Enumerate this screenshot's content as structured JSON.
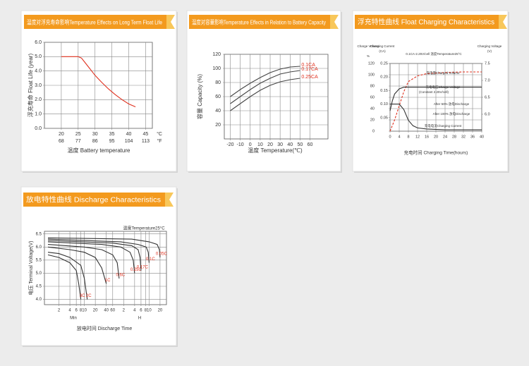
{
  "chart_data": [
    {
      "type": "line",
      "title": "温度对浮充寿命影响Temperature Effects on Long Term Float Life",
      "ylabel": "浮充寿命 Float Life (year)",
      "xlabel": "温度 Battery temperature",
      "xunits": [
        "°C",
        "°F"
      ],
      "x": [
        20,
        25,
        26,
        27,
        28,
        30,
        32,
        34,
        36,
        38,
        40,
        42
      ],
      "values": [
        5,
        5,
        4.9,
        4.6,
        4.3,
        3.7,
        3.2,
        2.75,
        2.35,
        2.0,
        1.7,
        1.5
      ],
      "color": "#e0301e",
      "xlim": [
        15,
        47
      ],
      "xticks": [
        20,
        25,
        30,
        35,
        40,
        45
      ],
      "x2ticks": [
        {
          "value": 20,
          "label": "68"
        },
        {
          "value": 25,
          "label": "77"
        },
        {
          "value": 30,
          "label": "86"
        },
        {
          "value": 35,
          "label": "95"
        },
        {
          "value": 40,
          "label": "104"
        },
        {
          "value": 45,
          "label": "113"
        }
      ],
      "ylim": [
        0,
        6
      ],
      "yticks": [
        {
          "value": 0,
          "label": "0.0"
        },
        {
          "value": 1,
          "label": "1.0"
        },
        {
          "value": 2,
          "label": "2.0"
        },
        {
          "value": 3,
          "label": "3.0"
        },
        {
          "value": 4,
          "label": "4.0"
        },
        {
          "value": 5,
          "label": "5.0"
        },
        {
          "value": 6,
          "label": "6.0"
        }
      ],
      "grid": true
    },
    {
      "type": "line",
      "title": "温度对容量影响Temperature Effects in Relation to Battery Capacity",
      "ylabel": "容量 Capacity (%)",
      "xlabel": "温度 Temperature(℃)",
      "label_color": "#e0301e",
      "series": [
        {
          "name": "0.1CA",
          "color": "#444444",
          "x": [
            -20,
            -10,
            0,
            10,
            20,
            30,
            40,
            50
          ],
          "values": [
            60,
            70,
            79,
            87,
            94,
            99,
            102,
            103
          ]
        },
        {
          "name": "0.17CA",
          "color": "#444444",
          "x": [
            -20,
            -10,
            0,
            10,
            20,
            30,
            40,
            50
          ],
          "values": [
            50,
            60,
            70,
            79,
            86,
            92,
            95,
            97
          ]
        },
        {
          "name": "0.25CA",
          "color": "#444444",
          "x": [
            -20,
            -10,
            0,
            10,
            20,
            30,
            40,
            50
          ],
          "values": [
            40,
            50,
            60,
            69,
            76,
            81,
            84,
            86
          ]
        }
      ],
      "xlim": [
        -26,
        78
      ],
      "xticks": [
        -20,
        -10,
        0,
        10,
        20,
        30,
        40,
        50,
        60
      ],
      "ylim": [
        0,
        120
      ],
      "yticks": [
        20,
        40,
        60,
        80,
        100,
        120
      ],
      "grid": true
    },
    {
      "type": "line",
      "title": "浮充特性曲线 Float Charging Characteristics",
      "ylabel": "Charge Volume",
      "yunit": "%",
      "y3label": "Charging Current",
      "y3unit": "(CA)",
      "y2label": "Charging Voltage",
      "y2unit": "(V)",
      "xlabel": "充电时间 Charging Time(hours)",
      "label_color": "#333333",
      "annotations": [
        "0.1CA-2.25V/cell 温度Temperature25°C",
        "(Constant 2.25V/cell)",
        "After 50% 放电Discharge",
        "After 100% 放电Discharge"
      ],
      "series": [
        {
          "name": "充电量Charged Volume",
          "color": "#e0301e",
          "dashed": true,
          "x": [
            0,
            2,
            4,
            6,
            8,
            12,
            16,
            24,
            32,
            40
          ],
          "values": [
            0,
            20,
            45,
            70,
            88,
            98,
            102,
            104,
            105,
            105
          ]
        },
        {
          "name": "充电电压Charge Voltage",
          "color": "#333333",
          "axis": "y2",
          "x": [
            0,
            1,
            2,
            4,
            6,
            8,
            12,
            16,
            24,
            32,
            40
          ],
          "values": [
            6.1,
            6.4,
            6.6,
            6.75,
            6.8,
            6.8,
            6.8,
            6.8,
            6.8,
            6.8,
            6.8
          ]
        },
        {
          "name": "充电电流Charging Current",
          "color": "#333333",
          "axis": "y3",
          "x": [
            0,
            4,
            6,
            8,
            10,
            12,
            16,
            24,
            32,
            40
          ],
          "values": [
            0.1,
            0.1,
            0.08,
            0.04,
            0.02,
            0.012,
            0.008,
            0.005,
            0.005,
            0.005
          ]
        }
      ],
      "xlim": [
        0,
        40
      ],
      "xticks": [
        0,
        4,
        8,
        12,
        16,
        20,
        24,
        28,
        32,
        36,
        40
      ],
      "ylim": [
        0,
        120
      ],
      "yticks": [
        0,
        20,
        40,
        60,
        80,
        100,
        120
      ],
      "y3lim": [
        0,
        0.25
      ],
      "y3ticks": [
        0.05,
        {
          "value": 0.1,
          "label": "0.10"
        },
        0.15,
        {
          "value": 0.2,
          "label": "0.20"
        },
        0.25
      ],
      "y2lim": [
        5.5,
        7.5
      ],
      "y2ticks": [
        {
          "value": 6,
          "label": "6.0"
        },
        6.5,
        {
          "value": 7,
          "label": "7.0"
        },
        7.5
      ],
      "grid": true
    },
    {
      "type": "line",
      "title": "放电特性曲线 Discharge Characteristics",
      "ylabel": "电压 Terminal Voltage(V)",
      "xlabel": "放电时间 Discharge Time",
      "xunits": [
        "Min",
        "H"
      ],
      "label_color": "#e0301e",
      "annotations": [
        "温度Temperature25°C"
      ],
      "xlog": true,
      "series": [
        {
          "name": "3C",
          "color": "#333333",
          "x": [
            1,
            2,
            4,
            6,
            7,
            8
          ],
          "values": [
            5.7,
            5.6,
            5.4,
            5.1,
            4.6,
            4.0
          ]
        },
        {
          "name": "2C",
          "color": "#333333",
          "x": [
            1,
            2,
            4,
            8,
            10,
            12
          ],
          "values": [
            5.8,
            5.75,
            5.6,
            5.3,
            4.8,
            4.0
          ]
        },
        {
          "name": "1C",
          "color": "#333333",
          "x": [
            1,
            4,
            10,
            20,
            30,
            40
          ],
          "values": [
            6.0,
            5.9,
            5.8,
            5.6,
            5.2,
            4.6
          ]
        },
        {
          "name": "0.6C",
          "color": "#333333",
          "x": [
            1,
            10,
            30,
            60,
            80,
            90
          ],
          "values": [
            6.1,
            6.0,
            5.9,
            5.7,
            5.4,
            4.8
          ]
        },
        {
          "name": "0.25C",
          "color": "#333333",
          "x": [
            1,
            30,
            100,
            180,
            220,
            240
          ],
          "values": [
            6.2,
            6.1,
            6.0,
            5.8,
            5.5,
            5.0
          ]
        },
        {
          "name": "0.17C",
          "color": "#333333",
          "x": [
            1,
            60,
            200,
            300,
            340,
            360
          ],
          "values": [
            6.25,
            6.15,
            6.05,
            5.9,
            5.6,
            5.1
          ]
        },
        {
          "name": "0.1C",
          "color": "#333333",
          "x": [
            1,
            100,
            300,
            500,
            570,
            600
          ],
          "values": [
            6.3,
            6.2,
            6.1,
            6.0,
            5.8,
            5.4
          ]
        },
        {
          "name": "0.05C",
          "color": "#333333",
          "x": [
            1,
            200,
            600,
            1000,
            1150,
            1200
          ],
          "values": [
            6.35,
            6.3,
            6.2,
            6.1,
            5.9,
            5.6
          ]
        }
      ],
      "xlim": [
        0.8,
        1800
      ],
      "xticks": [
        2,
        4,
        6,
        8,
        10,
        20,
        40,
        60,
        {
          "value": 120,
          "label": "2"
        },
        {
          "value": 240,
          "label": "4"
        },
        {
          "value": 360,
          "label": "6"
        },
        {
          "value": 480,
          "label": "8"
        },
        {
          "value": 600,
          "label": "10"
        },
        {
          "value": 1200,
          "label": "20"
        }
      ],
      "ylim": [
        3.8,
        6.6
      ],
      "yticks": [
        {
          "value": 4,
          "label": "4.0"
        },
        4.5,
        {
          "value": 5,
          "label": "5.0"
        },
        5.5,
        {
          "value": 6,
          "label": "6.0"
        },
        6.5
      ],
      "grid": true
    }
  ]
}
